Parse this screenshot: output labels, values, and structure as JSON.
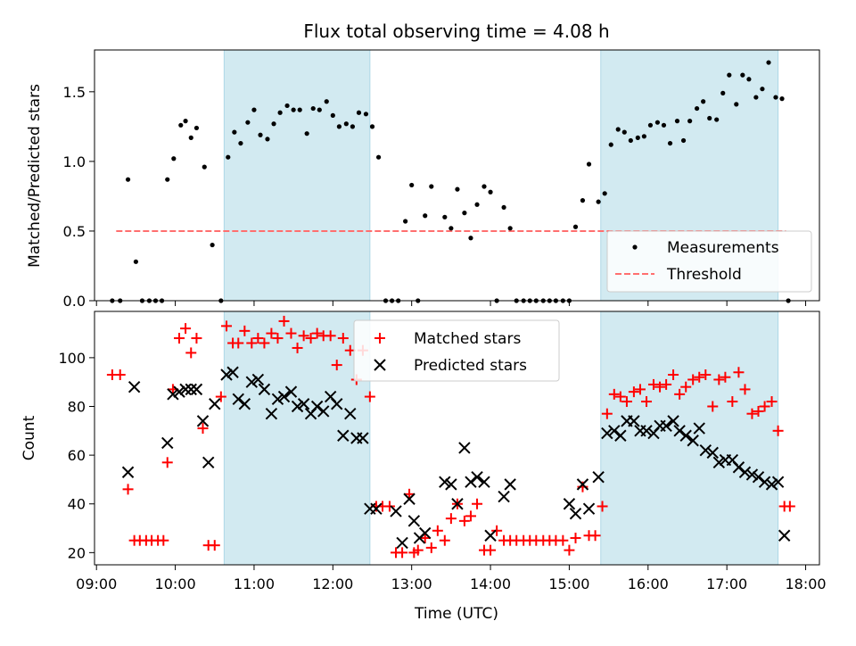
{
  "title": "Flux total observing time = 4.08 h",
  "colors": {
    "shade": "#add8e6",
    "threshold": "#ff6f6f",
    "matched": "#ff0000",
    "predicted": "#000000",
    "measure": "#000000"
  },
  "chart_data": [
    {
      "type": "scatter",
      "title": "Flux total observing time = 4.08 h",
      "xlabel": "",
      "ylabel": "Matched/Predicted stars",
      "xlim": [
        8.975,
        18.175
      ],
      "ylim": [
        0.0,
        1.8
      ],
      "yticks": [
        0.0,
        0.5,
        1.0,
        1.5
      ],
      "shaded_intervals": [
        [
          10.62,
          12.47
        ],
        [
          15.4,
          17.65
        ]
      ],
      "threshold": {
        "name": "Threshold",
        "y": 0.5,
        "x": [
          9.25,
          17.75
        ]
      },
      "legend": "lower right",
      "series": [
        {
          "name": "Measurements",
          "x": [
            9.2,
            9.3,
            9.4,
            9.5,
            9.58,
            9.67,
            9.75,
            9.83,
            9.9,
            9.98,
            10.07,
            10.13,
            10.2,
            10.27,
            10.37,
            10.47,
            10.58,
            10.67,
            10.75,
            10.83,
            10.92,
            11.0,
            11.08,
            11.17,
            11.25,
            11.33,
            11.42,
            11.5,
            11.58,
            11.67,
            11.75,
            11.83,
            11.92,
            12.0,
            12.08,
            12.17,
            12.25,
            12.33,
            12.42,
            12.5,
            12.58,
            12.67,
            12.75,
            12.83,
            12.92,
            13.0,
            13.08,
            13.17,
            13.25,
            13.42,
            13.5,
            13.58,
            13.67,
            13.75,
            13.83,
            13.92,
            14.0,
            14.08,
            14.17,
            14.25,
            14.33,
            14.42,
            14.5,
            14.58,
            14.67,
            14.75,
            14.83,
            14.92,
            15.0,
            15.08,
            15.17,
            15.25,
            15.37,
            15.45,
            15.53,
            15.62,
            15.7,
            15.78,
            15.87,
            15.95,
            16.03,
            16.12,
            16.2,
            16.28,
            16.37,
            16.45,
            16.53,
            16.62,
            16.7,
            16.78,
            16.87,
            16.95,
            17.03,
            17.12,
            17.2,
            17.28,
            17.37,
            17.45,
            17.53,
            17.62,
            17.7,
            17.78
          ],
          "y": [
            0.0,
            0.0,
            0.87,
            0.28,
            0.0,
            0.0,
            0.0,
            0.0,
            0.87,
            1.02,
            1.26,
            1.29,
            1.17,
            1.24,
            0.96,
            0.4,
            0.0,
            1.03,
            1.21,
            1.13,
            1.28,
            1.37,
            1.19,
            1.16,
            1.27,
            1.35,
            1.4,
            1.37,
            1.37,
            1.2,
            1.38,
            1.37,
            1.43,
            1.33,
            1.25,
            1.27,
            1.25,
            1.35,
            1.34,
            1.25,
            1.03,
            0.0,
            0.0,
            0.0,
            0.57,
            0.83,
            0.0,
            0.61,
            0.82,
            0.6,
            0.52,
            0.8,
            0.63,
            0.45,
            0.69,
            0.82,
            0.78,
            0.0,
            0.67,
            0.52,
            0.0,
            0.0,
            0.0,
            0.0,
            0.0,
            0.0,
            0.0,
            0.0,
            0.0,
            0.53,
            0.72,
            0.98,
            0.71,
            0.77,
            1.12,
            1.23,
            1.21,
            1.15,
            1.17,
            1.18,
            1.26,
            1.28,
            1.26,
            1.13,
            1.29,
            1.15,
            1.29,
            1.38,
            1.43,
            1.31,
            1.3,
            1.49,
            1.62,
            1.41,
            1.62,
            1.59,
            1.46,
            1.52,
            1.71,
            1.46,
            1.45,
            0.0
          ]
        }
      ]
    },
    {
      "type": "scatter",
      "title": "",
      "xlabel": "Time (UTC)",
      "ylabel": "Count",
      "xlim": [
        8.975,
        18.175
      ],
      "ylim": [
        15,
        119
      ],
      "yticks": [
        20,
        40,
        60,
        80,
        100
      ],
      "xticks": [
        9,
        10,
        11,
        12,
        13,
        14,
        15,
        16,
        17,
        18
      ],
      "xticklabels": [
        "09:00",
        "10:00",
        "11:00",
        "12:00",
        "13:00",
        "14:00",
        "15:00",
        "16:00",
        "17:00",
        "18:00"
      ],
      "shaded_intervals": [
        [
          10.62,
          12.47
        ],
        [
          15.4,
          17.65
        ]
      ],
      "legend": "upper center",
      "series": [
        {
          "name": "Matched stars",
          "x": [
            9.2,
            9.3,
            9.4,
            9.48,
            9.55,
            9.63,
            9.7,
            9.78,
            9.85,
            9.9,
            9.97,
            10.05,
            10.13,
            10.2,
            10.27,
            10.35,
            10.42,
            10.5,
            10.58,
            10.65,
            10.73,
            10.8,
            10.88,
            10.97,
            11.05,
            11.13,
            11.22,
            11.3,
            11.38,
            11.47,
            11.55,
            11.63,
            11.72,
            11.8,
            11.88,
            11.97,
            12.05,
            12.13,
            12.22,
            12.3,
            12.38,
            12.47,
            12.55,
            12.63,
            12.72,
            12.8,
            12.88,
            12.97,
            13.03,
            13.08,
            13.17,
            13.25,
            13.33,
            13.42,
            13.5,
            13.58,
            13.67,
            13.75,
            13.83,
            13.92,
            14.0,
            14.08,
            14.17,
            14.25,
            14.33,
            14.42,
            14.5,
            14.58,
            14.67,
            14.75,
            14.83,
            14.92,
            15.0,
            15.08,
            15.17,
            15.25,
            15.33,
            15.42,
            15.48,
            15.57,
            15.65,
            15.73,
            15.82,
            15.9,
            15.98,
            16.07,
            16.15,
            16.23,
            16.32,
            16.4,
            16.48,
            16.57,
            16.65,
            16.73,
            16.82,
            16.9,
            16.98,
            17.07,
            17.15,
            17.23,
            17.32,
            17.4,
            17.48,
            17.57,
            17.65,
            17.73,
            17.8
          ],
          "y": [
            93,
            93,
            46,
            25,
            25,
            25,
            25,
            25,
            25,
            57,
            87,
            108,
            112,
            102,
            108,
            71,
            23,
            23,
            84,
            113,
            106,
            106,
            111,
            106,
            108,
            106,
            110,
            108,
            115,
            110,
            104,
            109,
            108,
            110,
            109,
            109,
            97,
            108,
            103,
            91,
            103,
            84,
            39,
            39,
            39,
            20,
            20,
            44,
            20,
            21,
            26,
            22,
            29,
            25,
            34,
            40,
            33,
            35,
            40,
            21,
            21,
            29,
            25,
            25,
            25,
            25,
            25,
            25,
            25,
            25,
            25,
            25,
            21,
            26,
            47,
            27,
            27,
            39,
            77,
            85,
            84,
            82,
            86,
            87,
            82,
            89,
            88,
            89,
            93,
            85,
            88,
            91,
            92,
            93,
            80,
            91,
            92,
            82,
            94,
            87,
            77,
            78,
            80,
            82,
            70,
            39,
            39
          ]
        },
        {
          "name": "Predicted stars",
          "x": [
            9.4,
            9.48,
            9.9,
            9.97,
            10.05,
            10.13,
            10.2,
            10.27,
            10.35,
            10.42,
            10.5,
            10.65,
            10.73,
            10.8,
            10.88,
            10.97,
            11.05,
            11.13,
            11.22,
            11.3,
            11.38,
            11.47,
            11.55,
            11.63,
            11.72,
            11.8,
            11.88,
            11.97,
            12.05,
            12.13,
            12.22,
            12.3,
            12.38,
            12.47,
            12.55,
            12.8,
            12.88,
            12.97,
            13.03,
            13.1,
            13.17,
            13.42,
            13.5,
            13.58,
            13.67,
            13.75,
            13.83,
            13.92,
            14.0,
            14.17,
            14.25,
            15.0,
            15.08,
            15.17,
            15.25,
            15.37,
            15.48,
            15.57,
            15.65,
            15.73,
            15.82,
            15.9,
            15.98,
            16.07,
            16.15,
            16.23,
            16.32,
            16.4,
            16.48,
            16.57,
            16.65,
            16.73,
            16.82,
            16.9,
            16.98,
            17.07,
            17.15,
            17.23,
            17.32,
            17.4,
            17.48,
            17.57,
            17.65,
            17.73
          ],
          "y": [
            53,
            88,
            65,
            85,
            86,
            87,
            87,
            87,
            74,
            57,
            81,
            93,
            94,
            83,
            81,
            90,
            91,
            87,
            77,
            83,
            84,
            86,
            80,
            81,
            77,
            80,
            78,
            84,
            81,
            68,
            77,
            67,
            67,
            38,
            38,
            37,
            24,
            42,
            33,
            26,
            28,
            49,
            48,
            40,
            63,
            49,
            51,
            49,
            27,
            43,
            48,
            40,
            36,
            48,
            38,
            51,
            69,
            70,
            68,
            74,
            74,
            70,
            70,
            69,
            72,
            72,
            74,
            70,
            68,
            66,
            71,
            62,
            61,
            57,
            58,
            58,
            55,
            53,
            52,
            51,
            49,
            48,
            49,
            27
          ]
        }
      ]
    }
  ]
}
